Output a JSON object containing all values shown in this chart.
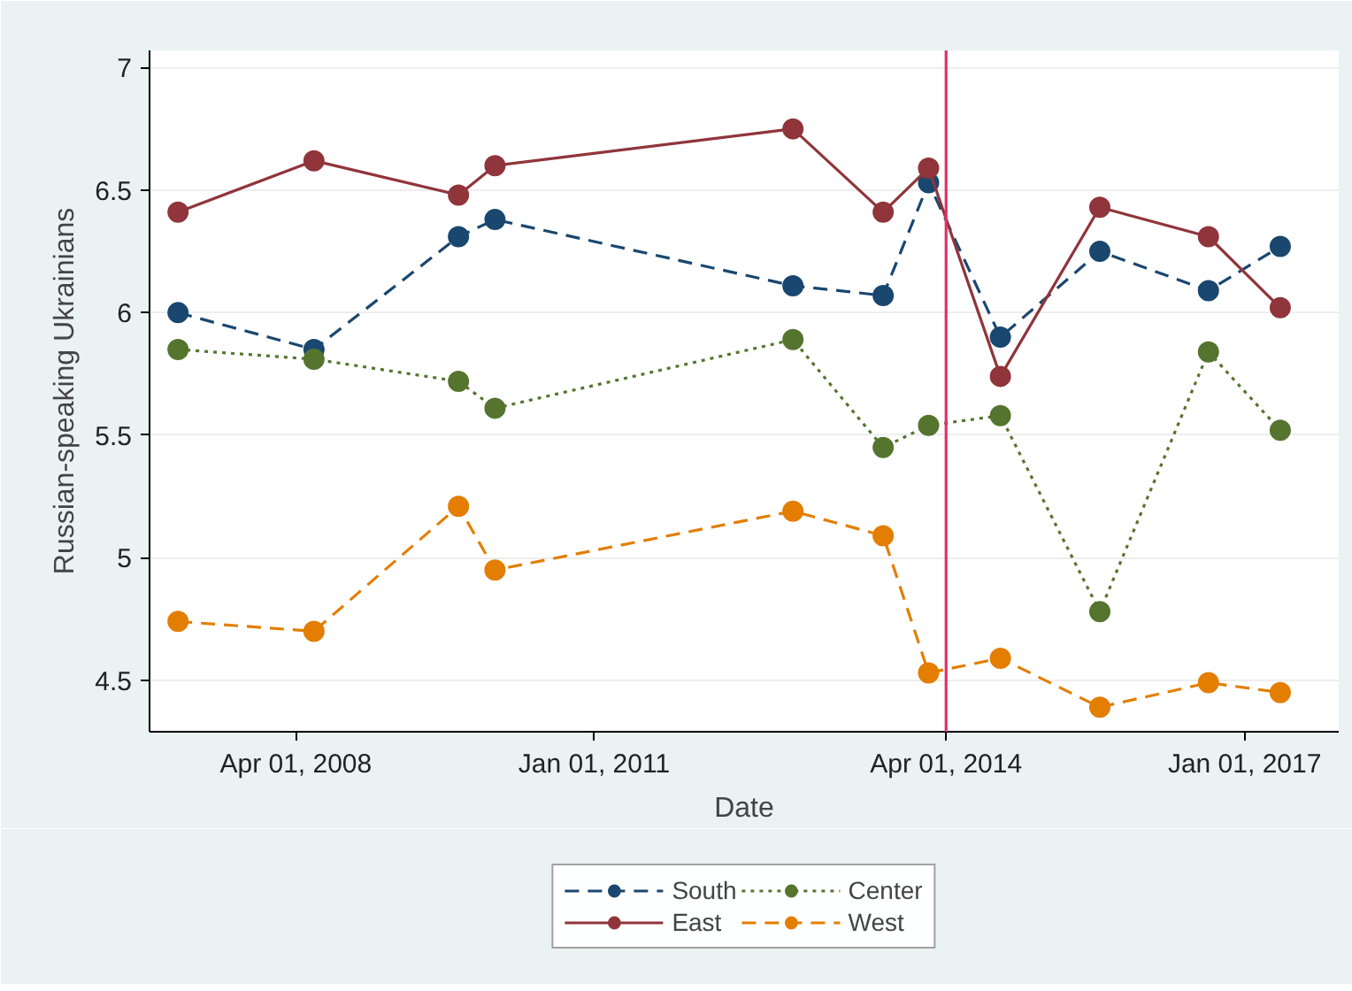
{
  "chart_data": {
    "type": "line",
    "xlabel": "Date",
    "ylabel": "Russian-speaking Ukrainians",
    "x": [
      "2007-03",
      "2008-06",
      "2009-10",
      "2010-02",
      "2012-11",
      "2013-09",
      "2014-02",
      "2014-10",
      "2015-09",
      "2016-09",
      "2017-05"
    ],
    "series": [
      {
        "name": "South",
        "color": "#1a476f",
        "line_style": "dashed",
        "values": [
          6.0,
          5.85,
          6.31,
          6.38,
          6.11,
          6.07,
          6.53,
          5.9,
          6.25,
          6.09,
          6.27
        ]
      },
      {
        "name": "East",
        "color": "#90353b",
        "line_style": "solid",
        "values": [
          6.41,
          6.62,
          6.48,
          6.6,
          6.75,
          6.41,
          6.59,
          5.74,
          6.43,
          6.31,
          6.02
        ]
      },
      {
        "name": "Center",
        "color": "#55752f",
        "line_style": "dotted",
        "values": [
          5.85,
          5.81,
          5.72,
          5.61,
          5.89,
          5.45,
          5.54,
          5.58,
          4.78,
          5.84,
          5.52
        ]
      },
      {
        "name": "West",
        "color": "#e37e00",
        "line_style": "dashed",
        "values": [
          4.74,
          4.7,
          5.21,
          4.95,
          5.19,
          5.09,
          4.53,
          4.59,
          4.39,
          4.49,
          4.45
        ]
      }
    ],
    "xlim": [
      "2006-11-25",
      "2017-11-14"
    ],
    "xticks": [
      {
        "value": "2008-04-01",
        "label": "Apr 01, 2008"
      },
      {
        "value": "2011-01-01",
        "label": "Jan 01, 2011"
      },
      {
        "value": "2014-04-01",
        "label": "Apr 01, 2014"
      },
      {
        "value": "2017-01-01",
        "label": "Jan 01, 2017"
      }
    ],
    "ylim": [
      4.29,
      7.07
    ],
    "yticks": [
      4.5,
      5,
      5.5,
      6,
      6.5,
      7
    ],
    "ref_lines": [
      {
        "axis": "x",
        "value": "2014-04-01",
        "color": "#e0306a"
      }
    ],
    "grid": "y",
    "legend": "bottom",
    "marker": "circle"
  }
}
